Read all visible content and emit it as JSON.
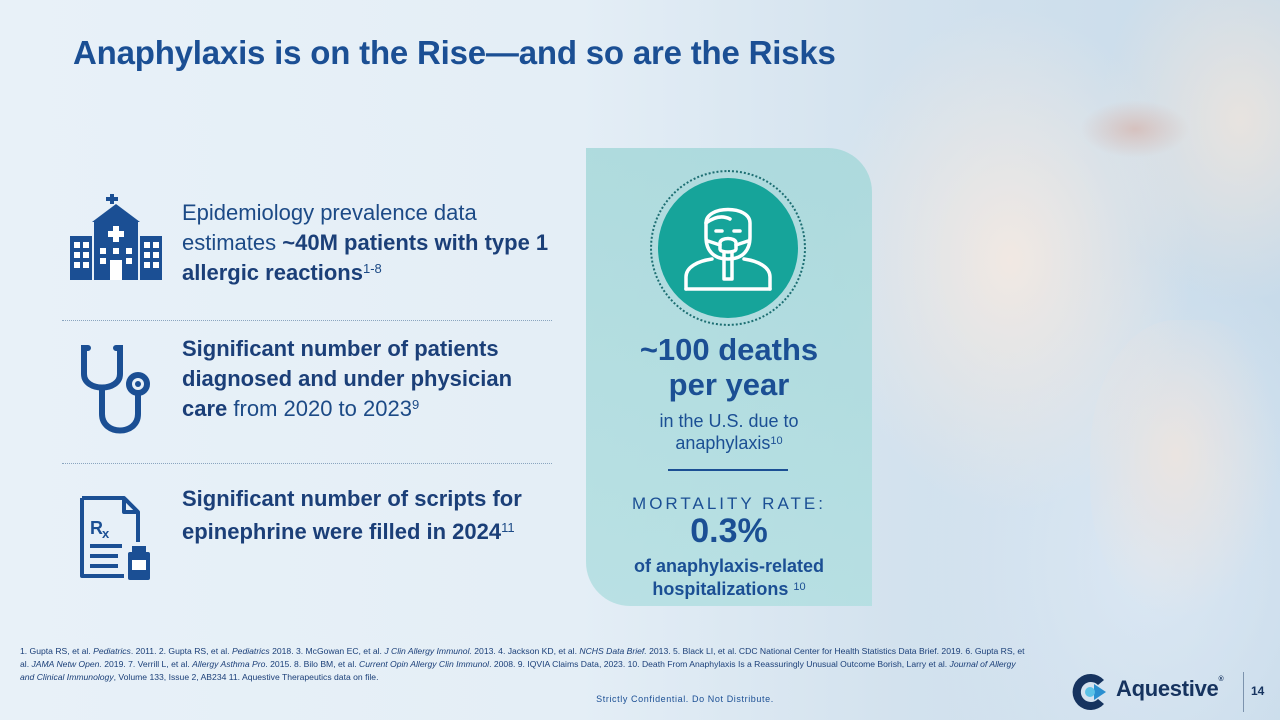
{
  "title": "Anaphylaxis is on the Rise—and so are the Risks",
  "stats": [
    {
      "icon": "hospital-icon",
      "pre": "Epidemiology prevalence data estimates ",
      "bold": "~40M patients with type 1 allergic reactions",
      "post": "",
      "sup": "1-8"
    },
    {
      "icon": "stethoscope-icon",
      "pre": "",
      "bold": "Significant number of patients diagnosed and under physician care",
      "post": " from 2020 to 2023",
      "sup": "9"
    },
    {
      "icon": "prescription-icon",
      "pre": "",
      "bold": "Significant number of scripts for epinephrine were filled in 2024",
      "post": "",
      "sup": "11"
    }
  ],
  "panel": {
    "icon": "patient-oxygen-mask-icon",
    "deaths_line1": "~100 deaths",
    "deaths_line2": "per year",
    "sub_line1": "in the U.S. due to",
    "sub_line2": "anaphylaxis",
    "sub_sup": "10",
    "mortality_label": "MORTALITY RATE:",
    "mortality_value": "0.3%",
    "mortality_desc_line1": "of anaphylaxis-related",
    "mortality_desc_line2": "hospitalizations ",
    "mortality_sup": "10"
  },
  "footnotes": {
    "f1": "1. Gupta RS, et al. ",
    "f1j": "Pediatrics",
    "f2": ". 2011. 2. Gupta RS, et al. ",
    "f2j": "Pediatrics",
    "f3": " 2018. 3. McGowan EC, et al. ",
    "f3j": "J Clin Allergy Immunol.",
    "f4": " 2013. 4. Jackson KD, et al. ",
    "f4j": "NCHS Data Brief.",
    "f5": " 2013. 5. Black LI, et al. CDC National Center for Health Statistics Data Brief. 2019. 6. Gupta RS, et al. ",
    "f6j": "JAMA Netw Open.",
    "f6": " 2019. 7. Verrill L, et al. ",
    "f7j": "Allergy Asthma Pro",
    "f7": ". 2015. 8. Bilo BM, et al. ",
    "f8j": "Current Opin Allergy Clin Immunol",
    "f8": ". 2008. 9. IQVIA Claims Data, 2023.  10. Death From Anaphylaxis Is a Reassuringly Unusual Outcome Borish, Larry et al. ",
    "f10j": "Journal of Allergy and Clinical Immunology",
    "f10": ", Volume 133, Issue 2, AB234  11. Aquestive Therapeutics data on file."
  },
  "confidential": "Strictly Confidential. Do Not Distribute.",
  "logo": {
    "name": "Aquestive",
    "reg": "®"
  },
  "page_number": "14",
  "colors": {
    "primary": "#1b4f94",
    "teal": "#16a49a",
    "panel": "#a6d8da"
  }
}
